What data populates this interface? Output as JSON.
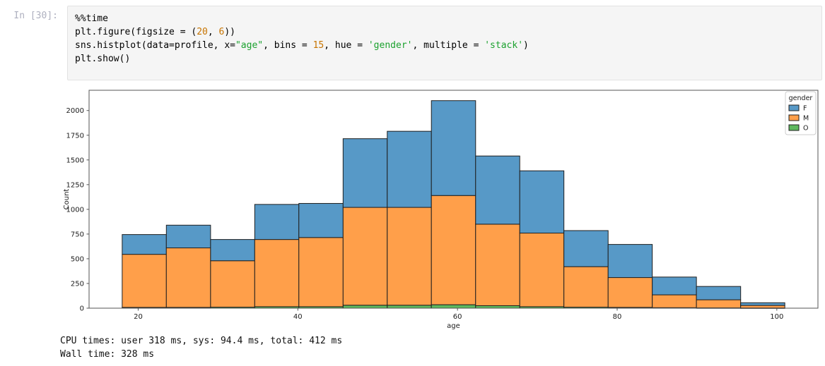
{
  "notebook": {
    "prompt": "In [30]:",
    "code": {
      "lines": [
        [
          {
            "t": "%%time",
            "c": "plain"
          }
        ],
        [
          {
            "t": "plt.figure(figsize = (",
            "c": "plain"
          },
          {
            "t": "20",
            "c": "number"
          },
          {
            "t": ", ",
            "c": "plain"
          },
          {
            "t": "6",
            "c": "number"
          },
          {
            "t": "))",
            "c": "plain"
          }
        ],
        [
          {
            "t": "sns.histplot(data=profile, x=",
            "c": "plain"
          },
          {
            "t": "\"age\"",
            "c": "string"
          },
          {
            "t": ", bins = ",
            "c": "plain"
          },
          {
            "t": "15",
            "c": "number"
          },
          {
            "t": ", hue = ",
            "c": "plain"
          },
          {
            "t": "'gender'",
            "c": "string"
          },
          {
            "t": ", multiple = ",
            "c": "plain"
          },
          {
            "t": "'stack'",
            "c": "string"
          },
          {
            "t": ")",
            "c": "plain"
          }
        ],
        [
          {
            "t": "plt.show()",
            "c": "plain"
          }
        ]
      ]
    },
    "outputs": {
      "cpu_times": "CPU times: user 318 ms, sys: 94.4 ms, total: 412 ms",
      "wall_time": "Wall time: 328 ms"
    }
  },
  "syntax_colors": {
    "plain": "#000000",
    "number": "#c77400",
    "string": "#1ba12e"
  },
  "ui_colors": {
    "cell_background": "#f5f5f5",
    "cell_border": "#e2e2e2",
    "prompt_text": "#aeb0bf",
    "axis_text": "#1a1a1a",
    "spine": "#555555",
    "bar_edge": "#1f1f1f",
    "legend_border": "#cccccc"
  },
  "chart_data": {
    "type": "bar",
    "variant": "stacked-histogram",
    "xlabel": "age",
    "ylabel": "Count",
    "xlim": [
      13.85,
      105.15
    ],
    "ylim": [
      0,
      2205
    ],
    "xticks": [
      20,
      40,
      60,
      80,
      100
    ],
    "yticks": [
      0,
      250,
      500,
      750,
      1000,
      1250,
      1500,
      1750,
      2000
    ],
    "grid": false,
    "bin_edges": [
      18.0,
      23.53,
      29.07,
      34.6,
      40.13,
      45.67,
      51.2,
      56.73,
      62.27,
      67.8,
      73.33,
      78.87,
      84.4,
      89.93,
      95.47,
      101.0
    ],
    "series": [
      {
        "name": "O",
        "color": "#5EB85E",
        "values": [
          8,
          8,
          10,
          15,
          15,
          30,
          30,
          35,
          25,
          15,
          10,
          8,
          5,
          3,
          2
        ]
      },
      {
        "name": "M",
        "color": "#FF9F4A",
        "values": [
          537,
          602,
          470,
          680,
          700,
          990,
          990,
          1105,
          825,
          745,
          410,
          302,
          130,
          82,
          26
        ]
      },
      {
        "name": "F",
        "color": "#5799C7",
        "values": [
          200,
          230,
          215,
          355,
          345,
          695,
          770,
          960,
          690,
          630,
          365,
          335,
          180,
          135,
          27
        ]
      }
    ],
    "stacked_totals": [
      745,
      840,
      695,
      1050,
      1060,
      1715,
      1790,
      2100,
      1540,
      1390,
      785,
      645,
      315,
      220,
      55
    ],
    "legend": {
      "title": "gender",
      "position": "upper right",
      "entries": [
        {
          "label": "F",
          "color": "#5799C7"
        },
        {
          "label": "M",
          "color": "#FF9F4A"
        },
        {
          "label": "O",
          "color": "#5EB85E"
        }
      ]
    }
  }
}
